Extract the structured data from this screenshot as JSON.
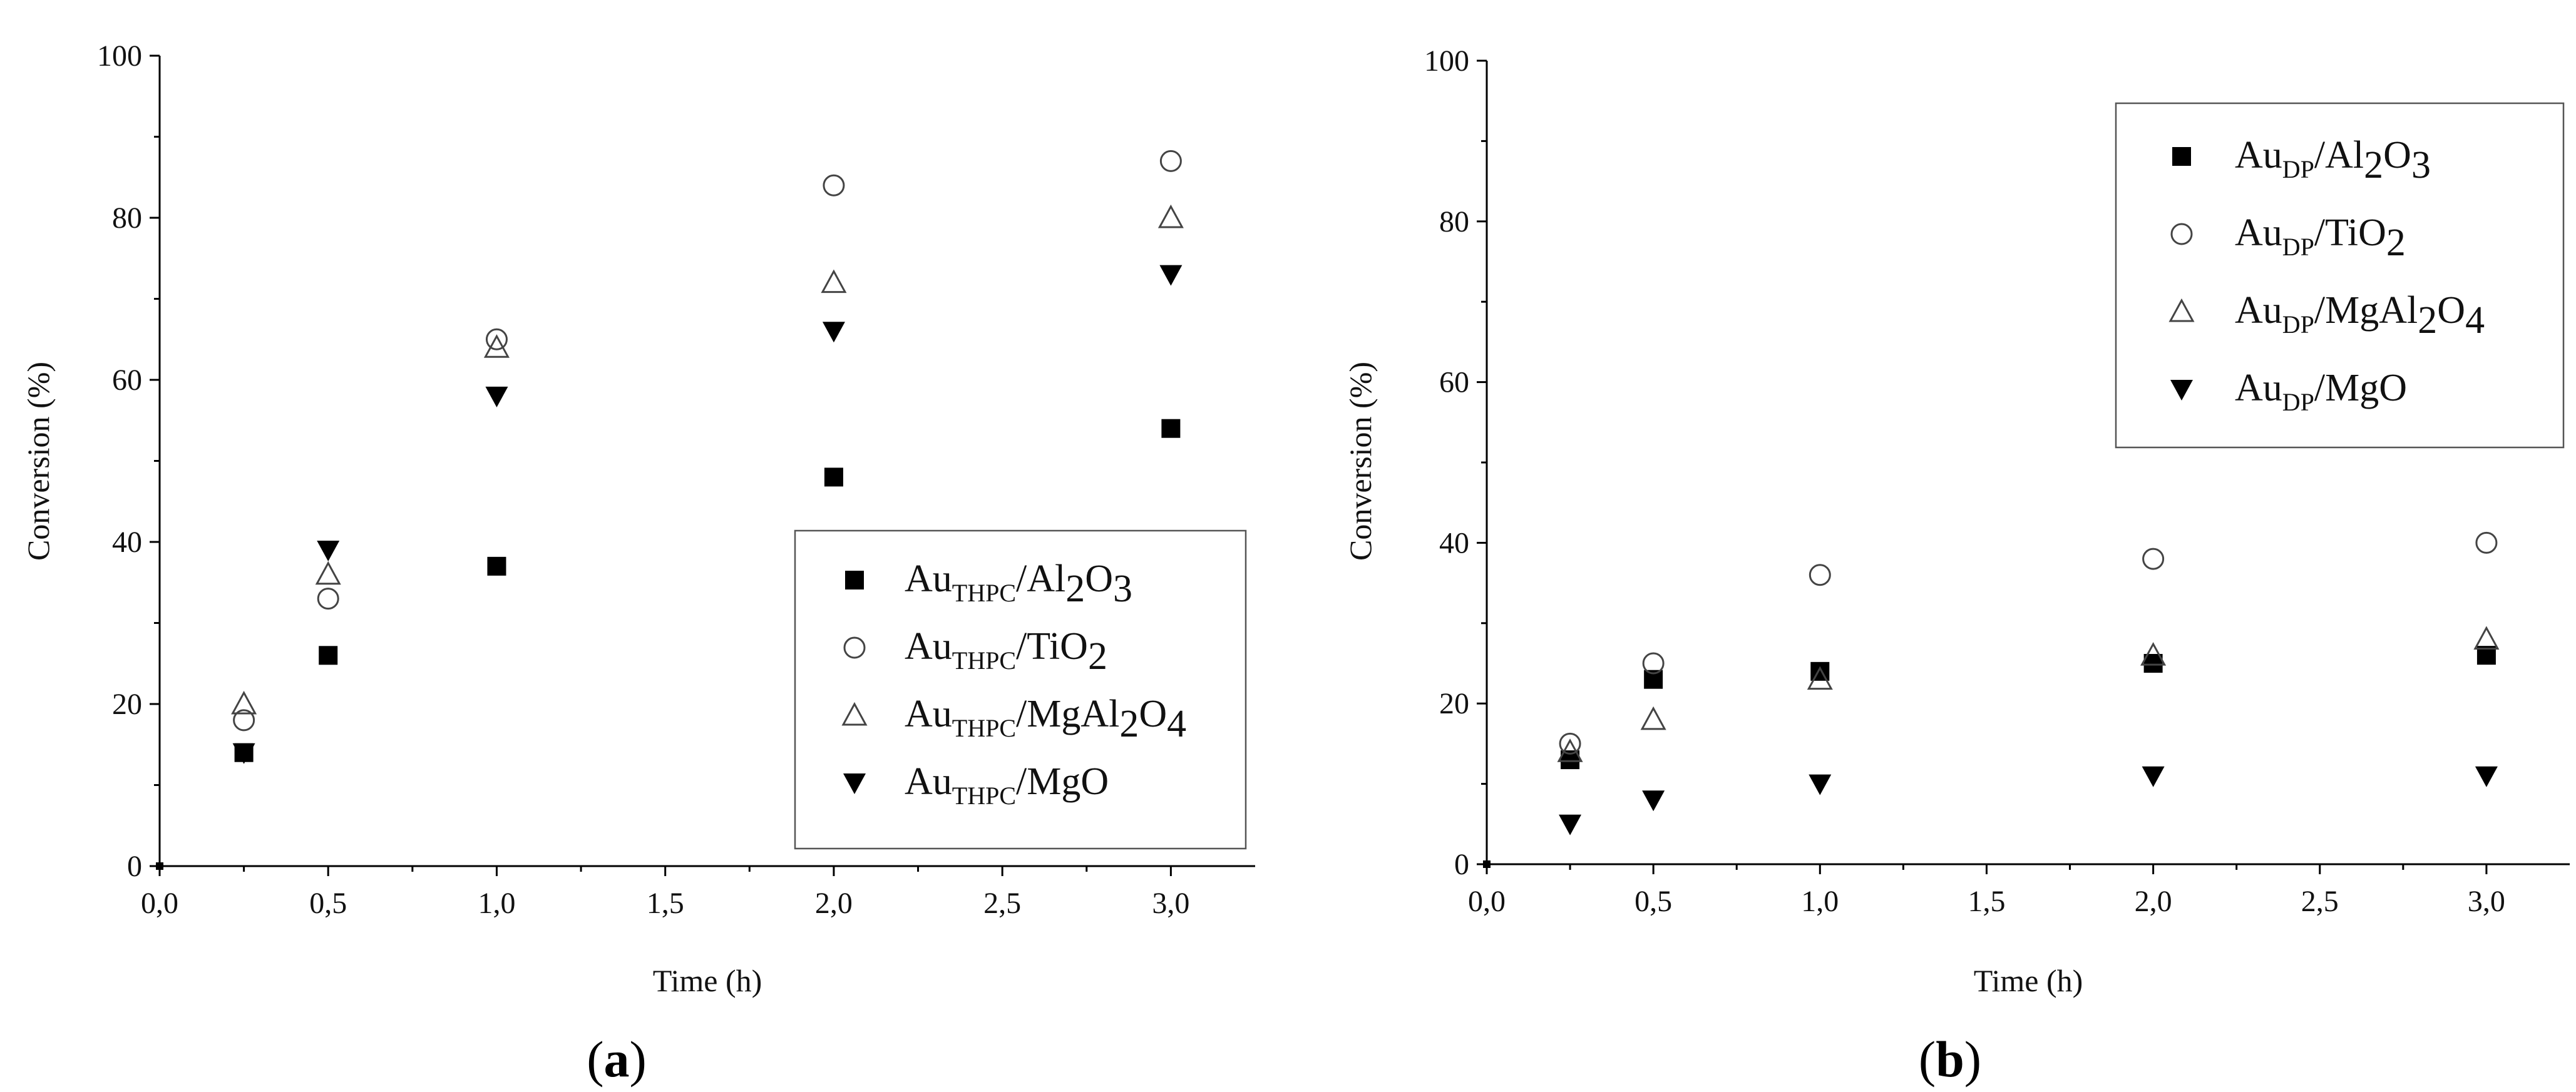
{
  "chart_data": [
    {
      "panel": "(a)",
      "panel_parts": [
        "(",
        "a",
        ")"
      ],
      "type": "scatter",
      "xlabel": "Time (h)",
      "ylabel": "Conversion (%)",
      "xlim": [
        0,
        3.25
      ],
      "ylim": [
        0,
        100
      ],
      "xticks": [
        0,
        0.5,
        1.0,
        1.5,
        2.0,
        2.5,
        3.0
      ],
      "xtick_labels": [
        "0,0",
        "0,5",
        "1,0",
        "1,5",
        "2,0",
        "2,5",
        "3,0"
      ],
      "yticks": [
        0,
        20,
        40,
        60,
        80,
        100
      ],
      "ytick_labels": [
        "0",
        "20",
        "40",
        "60",
        "80",
        "100"
      ],
      "grid": false,
      "legend_position": "bottom-right",
      "series": [
        {
          "name": "AuTHPC/Al2O3",
          "label": {
            "base": "Au",
            "sub1": "THPC",
            "rest": "/Al",
            "sub2": "2",
            "mid": "O",
            "sub3": "3"
          },
          "marker": "square-filled",
          "x": [
            0,
            0.25,
            0.5,
            1.0,
            2.0,
            3.0
          ],
          "y": [
            0,
            14,
            26,
            37,
            48,
            54
          ]
        },
        {
          "name": "AuTHPC/TiO2",
          "label": {
            "base": "Au",
            "sub1": "THPC",
            "rest": "/TiO",
            "sub2": "2",
            "mid": "",
            "sub3": ""
          },
          "marker": "circle-open",
          "x": [
            0.25,
            0.5,
            1.0,
            2.0,
            3.0
          ],
          "y": [
            18,
            33,
            65,
            84,
            87
          ]
        },
        {
          "name": "AuTHPC/MgAl2O4",
          "label": {
            "base": "Au",
            "sub1": "THPC",
            "rest": "/MgAl",
            "sub2": "2",
            "mid": "O",
            "sub3": "4"
          },
          "marker": "triangle-up-open",
          "x": [
            0.25,
            0.5,
            1.0,
            2.0,
            3.0
          ],
          "y": [
            20,
            36,
            64,
            72,
            80
          ]
        },
        {
          "name": "AuTHPC/MgO",
          "label": {
            "base": "Au",
            "sub1": "THPC",
            "rest": "/MgO",
            "sub2": "",
            "mid": "",
            "sub3": ""
          },
          "marker": "triangle-down-filled",
          "x": [
            0.25,
            0.5,
            1.0,
            2.0,
            3.0
          ],
          "y": [
            14,
            39,
            58,
            66,
            73
          ]
        }
      ]
    },
    {
      "panel": "(b)",
      "panel_parts": [
        "(",
        "b",
        ")"
      ],
      "type": "scatter",
      "xlabel": "Time (h)",
      "ylabel": "Conversion (%)",
      "xlim": [
        0,
        3.25
      ],
      "ylim": [
        0,
        100
      ],
      "xticks": [
        0,
        0.5,
        1.0,
        1.5,
        2.0,
        2.5,
        3.0
      ],
      "xtick_labels": [
        "0,0",
        "0,5",
        "1,0",
        "1,5",
        "2,0",
        "2,5",
        "3,0"
      ],
      "yticks": [
        0,
        20,
        40,
        60,
        80,
        100
      ],
      "ytick_labels": [
        "0",
        "20",
        "40",
        "60",
        "80",
        "100"
      ],
      "grid": false,
      "legend_position": "top-right",
      "series": [
        {
          "name": "AuDP/Al2O3",
          "label": {
            "base": "Au",
            "sub1": "DP",
            "rest": "/Al",
            "sub2": "2",
            "mid": "O",
            "sub3": "3"
          },
          "marker": "square-filled",
          "x": [
            0,
            0.25,
            0.5,
            1.0,
            2.0,
            3.0
          ],
          "y": [
            0,
            13,
            23,
            24,
            25,
            26
          ]
        },
        {
          "name": "AuDP/TiO2",
          "label": {
            "base": "Au",
            "sub1": "DP",
            "rest": "/TiO",
            "sub2": "2",
            "mid": "",
            "sub3": ""
          },
          "marker": "circle-open",
          "x": [
            0.25,
            0.5,
            1.0,
            2.0,
            3.0
          ],
          "y": [
            15,
            25,
            36,
            38,
            40
          ]
        },
        {
          "name": "AuDP/MgAl2O4",
          "label": {
            "base": "Au",
            "sub1": "DP",
            "rest": "/MgAl",
            "sub2": "2",
            "mid": "O",
            "sub3": "4"
          },
          "marker": "triangle-up-open",
          "x": [
            0.25,
            0.5,
            1.0,
            2.0,
            3.0
          ],
          "y": [
            14,
            18,
            23,
            26,
            28
          ]
        },
        {
          "name": "AuDP/MgO",
          "label": {
            "base": "Au",
            "sub1": "DP",
            "rest": "/MgO",
            "sub2": "",
            "mid": "",
            "sub3": ""
          },
          "marker": "triangle-down-filled",
          "x": [
            0.25,
            0.5,
            1.0,
            2.0,
            3.0
          ],
          "y": [
            5,
            8,
            10,
            11,
            11
          ]
        }
      ]
    }
  ]
}
